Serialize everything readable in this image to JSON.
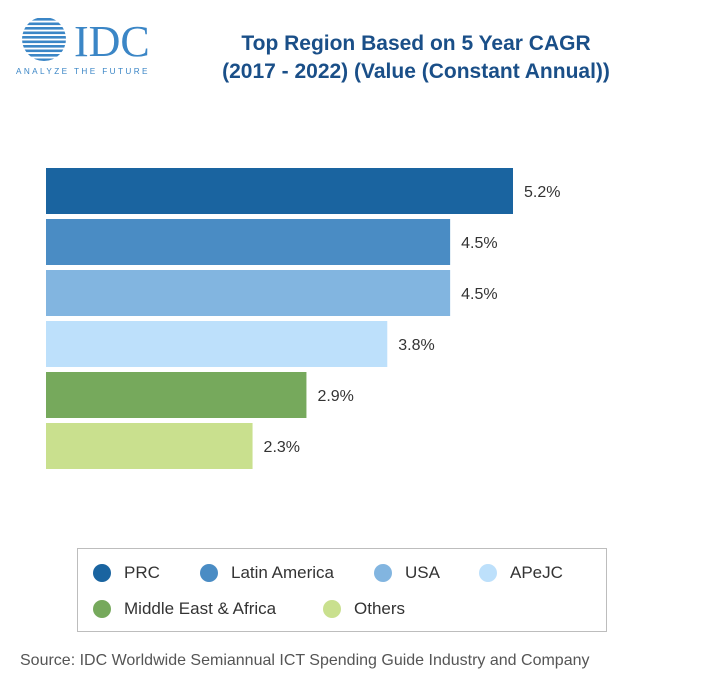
{
  "logo": {
    "wordmark": "IDC",
    "tagline": "ANALYZE THE FUTURE"
  },
  "header": {
    "title_line1": "Top Region Based on 5 Year CAGR",
    "title_line2": "(2017 - 2022) (Value (Constant Annual))"
  },
  "chart_data": {
    "type": "bar",
    "orientation": "horizontal",
    "title": "Top Region Based on 5 Year CAGR (2017 - 2022) (Value (Constant Annual))",
    "categories": [
      "PRC",
      "Latin America",
      "USA",
      "APeJC",
      "Middle East & Africa",
      "Others"
    ],
    "values": [
      5.2,
      4.5,
      4.5,
      3.8,
      2.9,
      2.3
    ],
    "value_labels": [
      "5.2%",
      "4.5%",
      "4.5%",
      "3.8%",
      "2.9%",
      "2.3%"
    ],
    "colors": [
      "#1a64a0",
      "#4a8cc4",
      "#82b5e0",
      "#bde0fb",
      "#76a95c",
      "#c9e08e"
    ],
    "xlim": [
      0,
      5.2
    ],
    "grid": false,
    "legend_position": "bottom"
  },
  "footer": {
    "source": "Source: IDC Worldwide Semiannual ICT Spending Guide Industry and Company"
  }
}
